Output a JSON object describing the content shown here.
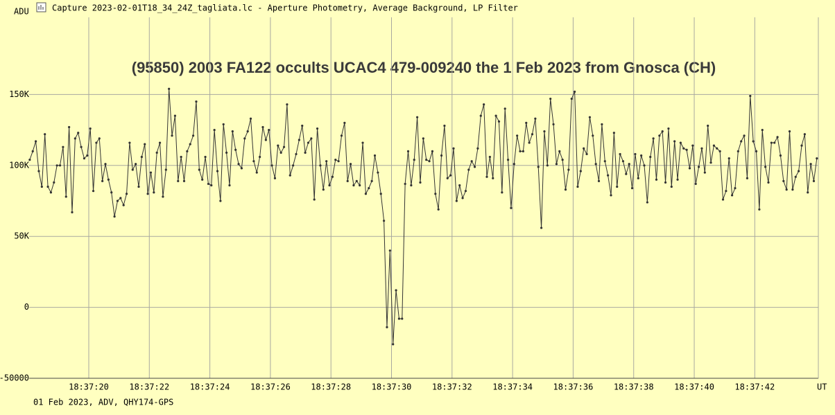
{
  "window_title": "Capture 2023-02-01T18_34_24Z_tagliata.lc - Aperture Photometry, Average Background, LP Filter",
  "footer": "01 Feb 2023, ADV, QHY174-GPS",
  "chart_data": {
    "type": "line",
    "title": "(95850) 2003 FA122 occults UCAC4 479-009240 the 1 Feb 2023 from Gnosca (CH)",
    "ylabel": "ADU",
    "xlabel": "UT",
    "color": "#333333",
    "grid": true,
    "markers": true,
    "xlim": [
      18.03,
      44.1
    ],
    "ylim": [
      -50000,
      204400
    ],
    "xticks": [
      {
        "value": 20,
        "label": "18:37:20"
      },
      {
        "value": 22,
        "label": "18:37:22"
      },
      {
        "value": 24,
        "label": "18:37:24"
      },
      {
        "value": 26,
        "label": "18:37:26"
      },
      {
        "value": 28,
        "label": "18:37:28"
      },
      {
        "value": 30,
        "label": "18:37:30"
      },
      {
        "value": 32,
        "label": "18:37:32"
      },
      {
        "value": 34,
        "label": "18:37:34"
      },
      {
        "value": 36,
        "label": "18:37:36"
      },
      {
        "value": 38,
        "label": "18:37:38"
      },
      {
        "value": 40,
        "label": "18:37:40"
      },
      {
        "value": 42,
        "label": "18:37:42"
      }
    ],
    "yticks": [
      -50000,
      0,
      {
        "value": 50000,
        "label": "50K"
      },
      {
        "value": 100000,
        "label": "100K"
      },
      {
        "value": 150000,
        "label": "150K"
      }
    ],
    "x": [
      18.05,
      18.15,
      18.25,
      18.35,
      18.45,
      18.55,
      18.65,
      18.75,
      18.85,
      18.95,
      19.05,
      19.15,
      19.25,
      19.35,
      19.45,
      19.55,
      19.65,
      19.75,
      19.85,
      19.95,
      20.05,
      20.15,
      20.25,
      20.35,
      20.45,
      20.55,
      20.65,
      20.75,
      20.85,
      20.95,
      21.05,
      21.15,
      21.25,
      21.35,
      21.45,
      21.55,
      21.65,
      21.75,
      21.85,
      21.95,
      22.05,
      22.15,
      22.25,
      22.35,
      22.45,
      22.55,
      22.65,
      22.75,
      22.85,
      22.95,
      23.05,
      23.15,
      23.25,
      23.35,
      23.45,
      23.55,
      23.65,
      23.75,
      23.85,
      23.95,
      24.05,
      24.15,
      24.25,
      24.35,
      24.45,
      24.55,
      24.65,
      24.75,
      24.85,
      24.95,
      25.05,
      25.15,
      25.25,
      25.35,
      25.45,
      25.55,
      25.65,
      25.75,
      25.85,
      25.95,
      26.05,
      26.15,
      26.25,
      26.35,
      26.45,
      26.55,
      26.65,
      26.75,
      26.85,
      26.95,
      27.05,
      27.15,
      27.25,
      27.35,
      27.45,
      27.55,
      27.65,
      27.75,
      27.85,
      27.95,
      28.05,
      28.15,
      28.25,
      28.35,
      28.45,
      28.55,
      28.65,
      28.75,
      28.85,
      28.95,
      29.05,
      29.15,
      29.25,
      29.35,
      29.45,
      29.55,
      29.65,
      29.75,
      29.85,
      29.95,
      30.05,
      30.15,
      30.25,
      30.35,
      30.45,
      30.55,
      30.65,
      30.75,
      30.85,
      30.95,
      31.05,
      31.15,
      31.25,
      31.35,
      31.45,
      31.55,
      31.65,
      31.75,
      31.85,
      31.95,
      32.05,
      32.15,
      32.25,
      32.35,
      32.45,
      32.55,
      32.65,
      32.75,
      32.85,
      32.95,
      33.05,
      33.15,
      33.25,
      33.35,
      33.45,
      33.55,
      33.65,
      33.75,
      33.85,
      33.95,
      34.05,
      34.15,
      34.25,
      34.35,
      34.45,
      34.55,
      34.65,
      34.75,
      34.85,
      34.95,
      35.05,
      35.15,
      35.25,
      35.35,
      35.45,
      35.55,
      35.65,
      35.75,
      35.85,
      35.95,
      36.05,
      36.15,
      36.25,
      36.35,
      36.45,
      36.55,
      36.65,
      36.75,
      36.85,
      36.95,
      37.05,
      37.15,
      37.25,
      37.35,
      37.45,
      37.55,
      37.65,
      37.75,
      37.85,
      37.95,
      38.05,
      38.15,
      38.25,
      38.35,
      38.45,
      38.55,
      38.65,
      38.75,
      38.85,
      38.95,
      39.05,
      39.15,
      39.25,
      39.35,
      39.45,
      39.55,
      39.65,
      39.75,
      39.85,
      39.95,
      40.05,
      40.15,
      40.25,
      40.35,
      40.45,
      40.55,
      40.65,
      40.75,
      40.85,
      40.95,
      41.05,
      41.15,
      41.25,
      41.35,
      41.45,
      41.55,
      41.65,
      41.75,
      41.85,
      41.95,
      42.05,
      42.15,
      42.25,
      42.35,
      42.45,
      42.55,
      42.65,
      42.75,
      42.85,
      42.95,
      43.05,
      43.15,
      43.25,
      43.35,
      43.45,
      43.55,
      43.65,
      43.75,
      43.85,
      43.95,
      44.05
    ],
    "values": [
      104000,
      110000,
      117000,
      96000,
      85000,
      122000,
      85000,
      81000,
      88000,
      100000,
      100000,
      113000,
      78000,
      127000,
      67000,
      119000,
      123000,
      113000,
      105000,
      107000,
      126000,
      82000,
      116000,
      119000,
      89000,
      101000,
      90000,
      81000,
      64000,
      75000,
      77000,
      72000,
      80000,
      116000,
      97000,
      101000,
      85000,
      106000,
      115000,
      80000,
      95000,
      81000,
      109000,
      116000,
      78000,
      97000,
      154000,
      121000,
      135000,
      89000,
      106000,
      89000,
      110000,
      115000,
      121000,
      145000,
      97000,
      90000,
      106000,
      87000,
      86000,
      125000,
      96000,
      75000,
      129000,
      109000,
      86000,
      124000,
      111000,
      101000,
      98000,
      119000,
      124000,
      133000,
      103000,
      95000,
      106000,
      127000,
      118000,
      125000,
      100000,
      91000,
      114000,
      109000,
      113000,
      143000,
      93000,
      100000,
      108000,
      118000,
      128000,
      109000,
      116000,
      119000,
      76000,
      126000,
      100000,
      83000,
      103000,
      86000,
      92000,
      104000,
      103000,
      121000,
      130000,
      89000,
      101000,
      86000,
      89000,
      86000,
      116000,
      80000,
      84000,
      89000,
      107000,
      95000,
      80000,
      61000,
      -14000,
      40000,
      -26000,
      12000,
      -8000,
      -8000,
      87000,
      110000,
      86000,
      104000,
      134000,
      88000,
      119000,
      104000,
      103000,
      110000,
      80000,
      69000,
      107000,
      128000,
      91000,
      93000,
      112000,
      75000,
      86000,
      77000,
      82000,
      97000,
      103000,
      99000,
      112000,
      135000,
      143000,
      92000,
      106000,
      91000,
      135000,
      131000,
      81000,
      140000,
      104000,
      70000,
      101000,
      121000,
      110000,
      110000,
      130000,
      116000,
      122000,
      133000,
      99000,
      56000,
      124000,
      100000,
      147000,
      129000,
      101000,
      110000,
      104000,
      83000,
      97000,
      147000,
      152000,
      85000,
      96000,
      112000,
      108000,
      134000,
      121000,
      101000,
      89000,
      129000,
      103000,
      93000,
      79000,
      123000,
      85000,
      108000,
      103000,
      94000,
      101000,
      84000,
      108000,
      91000,
      107000,
      100000,
      74000,
      106000,
      119000,
      90000,
      121000,
      124000,
      88000,
      126000,
      85000,
      117000,
      90000,
      116000,
      112000,
      111000,
      98000,
      114000,
      87000,
      99000,
      112000,
      95000,
      128000,
      102000,
      114000,
      112000,
      110000,
      76000,
      82000,
      105000,
      79000,
      84000,
      110000,
      117000,
      121000,
      91000,
      149000,
      117000,
      110000,
      69000,
      125000,
      99000,
      88000,
      116000,
      116000,
      120000,
      107000,
      89000,
      83000,
      124000,
      83000,
      92000,
      96000,
      114000,
      122000,
      81000,
      101000,
      89000,
      105000
    ]
  }
}
